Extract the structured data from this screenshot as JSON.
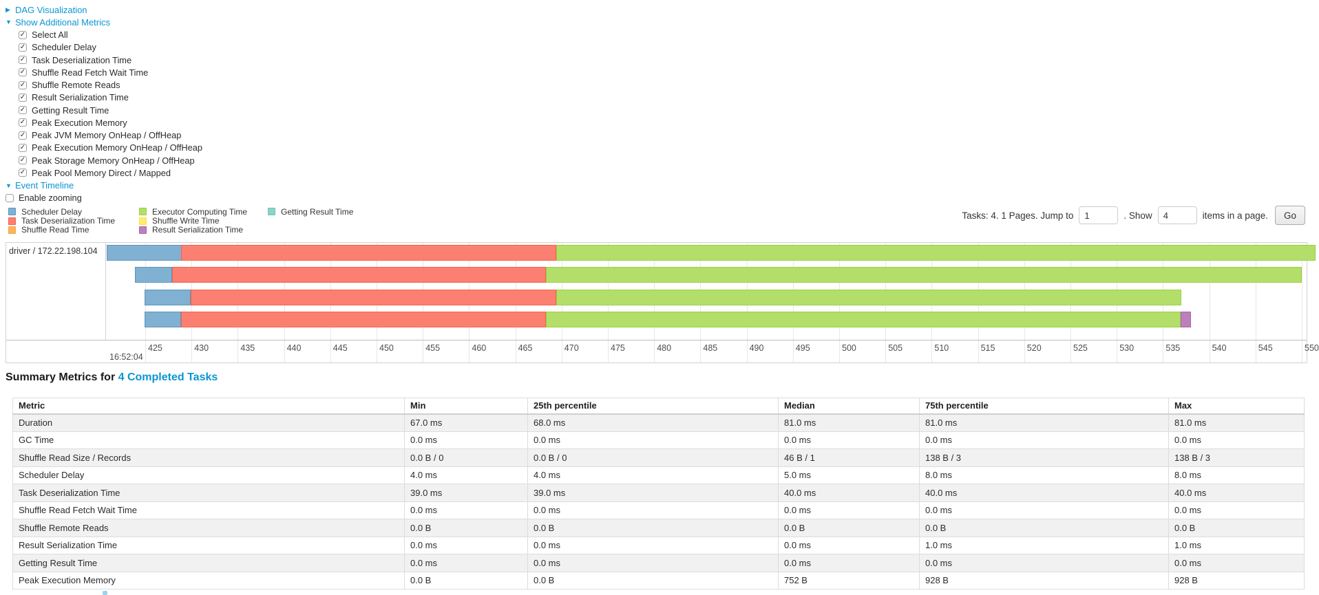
{
  "link_color": "#0a95d3",
  "controls": {
    "dag_toggle": {
      "label": "DAG Visualization",
      "collapsed": true
    },
    "metrics_toggle": {
      "label": "Show Additional Metrics",
      "collapsed": false
    },
    "metric_checkboxes": [
      {
        "label": "Select All",
        "checked": true
      },
      {
        "label": "Scheduler Delay",
        "checked": true
      },
      {
        "label": "Task Deserialization Time",
        "checked": true
      },
      {
        "label": "Shuffle Read Fetch Wait Time",
        "checked": true
      },
      {
        "label": "Shuffle Remote Reads",
        "checked": true
      },
      {
        "label": "Result Serialization Time",
        "checked": true
      },
      {
        "label": "Getting Result Time",
        "checked": true
      },
      {
        "label": "Peak Execution Memory",
        "checked": true
      },
      {
        "label": "Peak JVM Memory OnHeap / OffHeap",
        "checked": true
      },
      {
        "label": "Peak Execution Memory OnHeap / OffHeap",
        "checked": true
      },
      {
        "label": "Peak Storage Memory OnHeap / OffHeap",
        "checked": true
      },
      {
        "label": "Peak Pool Memory Direct / Mapped",
        "checked": true
      }
    ],
    "event_timeline_toggle": {
      "label": "Event Timeline",
      "collapsed": false
    },
    "enable_zooming": {
      "label": "Enable zooming",
      "checked": false
    }
  },
  "pagination": {
    "prefix": "Tasks: 4. 1 Pages. Jump to",
    "jump_value": "1",
    "mid": ". Show",
    "show_value": "4",
    "suffix": "items in a page.",
    "go_label": "Go"
  },
  "chart_data": {
    "type": "gantt-timeline",
    "group_label": "driver / 172.22.198.104",
    "axis": {
      "major_label": "16:52:04",
      "tick_unit_ms_of": "16:52:04",
      "ticks": [
        425,
        430,
        435,
        440,
        445,
        450,
        455,
        460,
        465,
        470,
        475,
        480,
        485,
        490,
        495,
        500,
        505,
        510,
        515,
        520,
        525,
        530,
        535,
        540,
        545,
        550
      ]
    },
    "colors": {
      "scheduler_delay": {
        "fill": "#80B1D3",
        "border": "#5D94BE"
      },
      "task_deserialization": {
        "fill": "#FB8072",
        "border": "#F8604C"
      },
      "shuffle_read": {
        "fill": "#FDB462",
        "border": "#FCA13A"
      },
      "executor_computing": {
        "fill": "#B3DE69",
        "border": "#9CCF41"
      },
      "shuffle_write": {
        "fill": "#FFED6F",
        "border": "#FFE53D"
      },
      "result_serialization": {
        "fill": "#BC80BD",
        "border": "#A963AB"
      },
      "getting_result": {
        "fill": "#8DD3C7",
        "border": "#6BC5B5"
      }
    },
    "legend_columns": [
      [
        {
          "label": "Scheduler Delay",
          "key": "scheduler_delay"
        },
        {
          "label": "Task Deserialization Time",
          "key": "task_deserialization"
        },
        {
          "label": "Shuffle Read Time",
          "key": "shuffle_read"
        }
      ],
      [
        {
          "label": "Executor Computing Time",
          "key": "executor_computing"
        },
        {
          "label": "Shuffle Write Time",
          "key": "shuffle_write"
        },
        {
          "label": "Result Serialization Time",
          "key": "result_serialization"
        }
      ],
      [
        {
          "label": "Getting Result Time",
          "key": "getting_result"
        }
      ]
    ],
    "tasks": [
      {
        "segments": [
          {
            "key": "scheduler_delay",
            "start": 420.8,
            "end": 428.9
          },
          {
            "key": "task_deserialization",
            "start": 428.9,
            "end": 469.4
          },
          {
            "key": "executor_computing",
            "start": 469.4,
            "end": 551.5
          }
        ]
      },
      {
        "segments": [
          {
            "key": "scheduler_delay",
            "start": 423.9,
            "end": 427.9
          },
          {
            "key": "task_deserialization",
            "start": 427.9,
            "end": 468.3
          },
          {
            "key": "executor_computing",
            "start": 468.3,
            "end": 550.0
          }
        ]
      },
      {
        "segments": [
          {
            "key": "scheduler_delay",
            "start": 424.9,
            "end": 429.9
          },
          {
            "key": "task_deserialization",
            "start": 429.9,
            "end": 469.4
          },
          {
            "key": "executor_computing",
            "start": 469.4,
            "end": 537.0
          }
        ]
      },
      {
        "segments": [
          {
            "key": "scheduler_delay",
            "start": 424.9,
            "end": 428.9
          },
          {
            "key": "task_deserialization",
            "start": 428.9,
            "end": 468.3
          },
          {
            "key": "executor_computing",
            "start": 468.3,
            "end": 536.9
          },
          {
            "key": "result_serialization",
            "start": 536.9,
            "end": 538.0
          }
        ]
      }
    ]
  },
  "summary": {
    "title_prefix": "Summary Metrics for",
    "title_link": "4 Completed Tasks",
    "columns": [
      "Metric",
      "Min",
      "25th percentile",
      "Median",
      "75th percentile",
      "Max"
    ],
    "rows": [
      [
        "Duration",
        "67.0 ms",
        "68.0 ms",
        "81.0 ms",
        "81.0 ms",
        "81.0 ms"
      ],
      [
        "GC Time",
        "0.0 ms",
        "0.0 ms",
        "0.0 ms",
        "0.0 ms",
        "0.0 ms"
      ],
      [
        "Shuffle Read Size / Records",
        "0.0 B / 0",
        "0.0 B / 0",
        "46 B / 1",
        "138 B / 3",
        "138 B / 3"
      ],
      [
        "Scheduler Delay",
        "4.0 ms",
        "4.0 ms",
        "5.0 ms",
        "8.0 ms",
        "8.0 ms"
      ],
      [
        "Task Deserialization Time",
        "39.0 ms",
        "39.0 ms",
        "40.0 ms",
        "40.0 ms",
        "40.0 ms"
      ],
      [
        "Shuffle Read Fetch Wait Time",
        "0.0 ms",
        "0.0 ms",
        "0.0 ms",
        "0.0 ms",
        "0.0 ms"
      ],
      [
        "Shuffle Remote Reads",
        "0.0 B",
        "0.0 B",
        "0.0 B",
        "0.0 B",
        "0.0 B"
      ],
      [
        "Result Serialization Time",
        "0.0 ms",
        "0.0 ms",
        "0.0 ms",
        "1.0 ms",
        "1.0 ms"
      ],
      [
        "Getting Result Time",
        "0.0 ms",
        "0.0 ms",
        "0.0 ms",
        "0.0 ms",
        "0.0 ms"
      ],
      [
        "Peak Execution Memory",
        "0.0 B",
        "0.0 B",
        "752 B",
        "928 B",
        "928 B"
      ]
    ]
  }
}
